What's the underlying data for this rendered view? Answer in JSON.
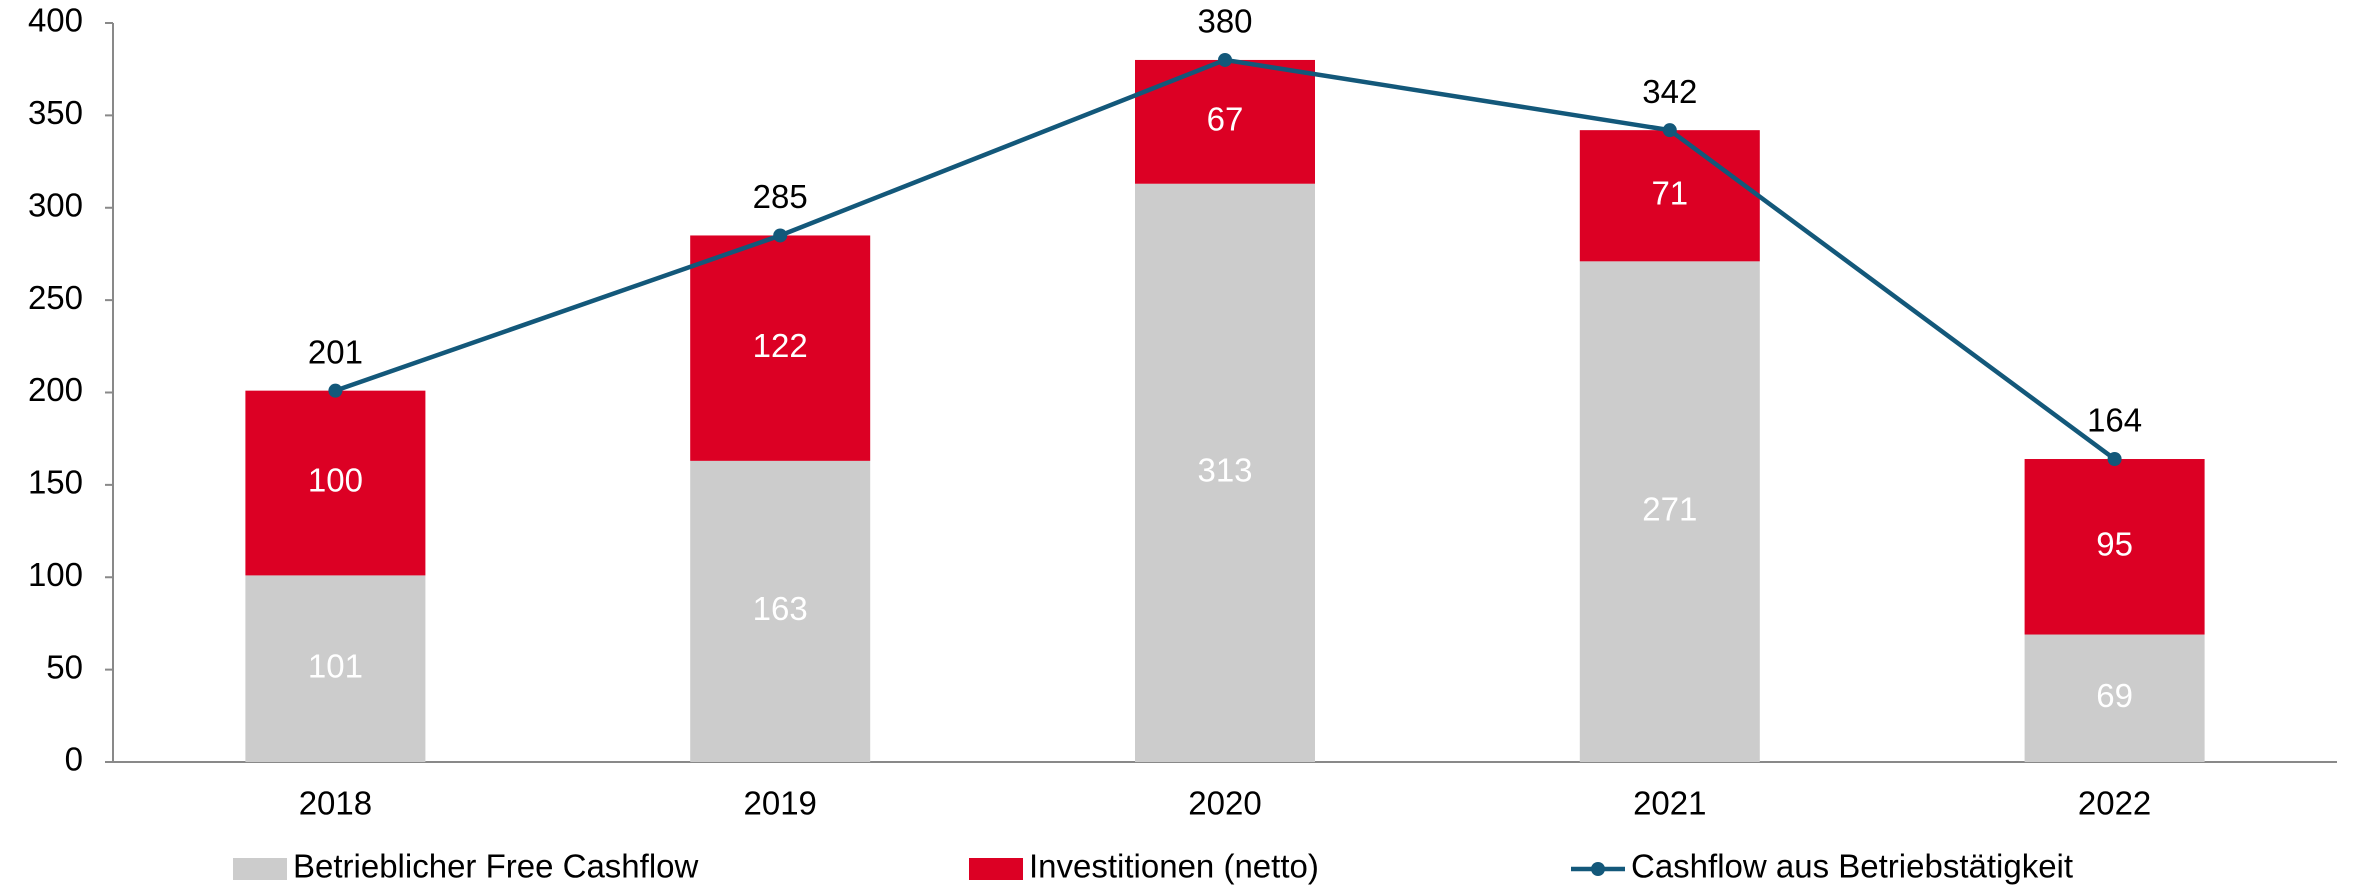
{
  "chart_data": {
    "type": "bar",
    "stacked": true,
    "categories": [
      "2018",
      "2019",
      "2020",
      "2021",
      "2022"
    ],
    "series": [
      {
        "name": "Betrieblicher Free Cashflow",
        "color": "#cccccc",
        "type": "bar",
        "values": [
          101,
          163,
          313,
          271,
          69
        ]
      },
      {
        "name": "Investitionen (netto)",
        "color": "#dc0024",
        "type": "bar",
        "values": [
          100,
          122,
          67,
          71,
          95
        ]
      },
      {
        "name": "Cashflow aus Betriebstätigkeit",
        "color": "#13587a",
        "type": "line",
        "values": [
          201,
          285,
          380,
          342,
          164
        ]
      }
    ],
    "ylim": [
      0,
      400
    ],
    "yticks": [
      0,
      50,
      100,
      150,
      200,
      250,
      300,
      350,
      400
    ],
    "grid": false,
    "legend": "bottom"
  }
}
